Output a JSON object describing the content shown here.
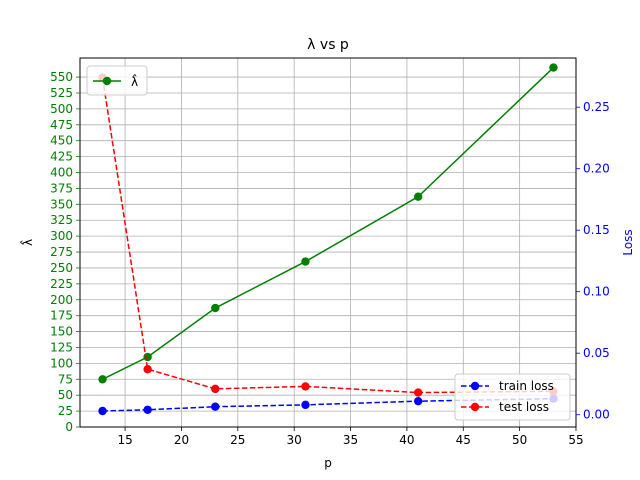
{
  "chart_data": {
    "type": "line",
    "title": "λ vs p",
    "xlabel": "p",
    "ylabel_left": "λ̂",
    "ylabel_right": "Loss",
    "xlim": [
      11,
      55
    ],
    "ylim_left": [
      0,
      580
    ],
    "ylim_right": [
      -0.01,
      0.29
    ],
    "xticks": [
      15,
      20,
      25,
      30,
      35,
      40,
      45,
      50,
      55
    ],
    "yticks_left": [
      0,
      25,
      50,
      75,
      100,
      125,
      150,
      175,
      200,
      225,
      250,
      275,
      300,
      325,
      350,
      375,
      400,
      425,
      450,
      475,
      500,
      525,
      550
    ],
    "yticks_right": [
      0.0,
      0.05,
      0.1,
      0.15,
      0.2,
      0.25
    ],
    "grid": true,
    "colors": {
      "lambda": "#008000",
      "train": "#0000ff",
      "test": "#ff0000",
      "left_axis": "#008000",
      "right_axis": "#0000ff",
      "grid": "#b0b0b0"
    },
    "x": [
      13,
      17,
      23,
      31,
      41,
      53
    ],
    "series": [
      {
        "name": "λ̂",
        "axis": "left",
        "style": "solid",
        "values": [
          75,
          110,
          187,
          260,
          362,
          565
        ]
      },
      {
        "name": "train loss",
        "axis": "right",
        "style": "dashed",
        "values": [
          0.003,
          0.004,
          0.0065,
          0.008,
          0.011,
          0.013
        ]
      },
      {
        "name": "test loss",
        "axis": "right",
        "style": "dashed",
        "values": [
          0.274,
          0.037,
          0.021,
          0.023,
          0.018,
          0.019
        ]
      }
    ],
    "legend_left_position": "upper left",
    "legend_right_position": "lower right"
  }
}
